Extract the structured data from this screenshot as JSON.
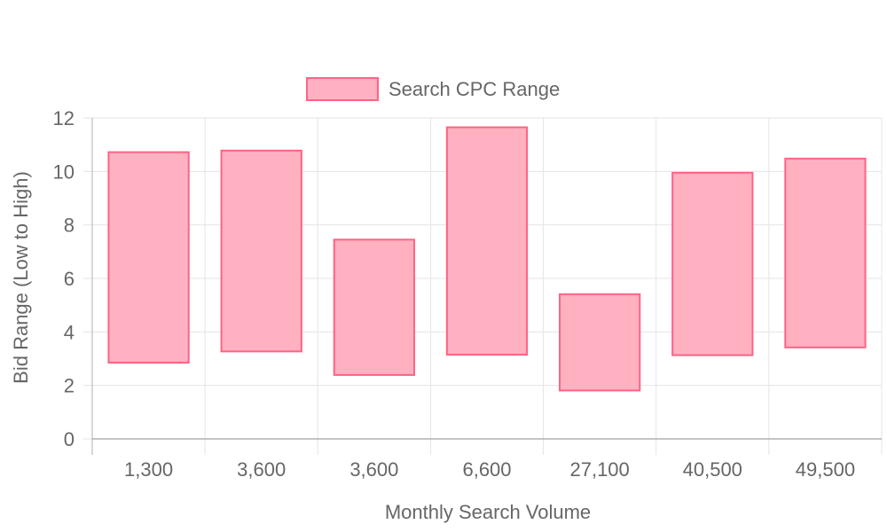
{
  "chart_data": {
    "type": "bar",
    "subtype": "floating-range",
    "categories": [
      "1,300",
      "3,600",
      "3,600",
      "6,600",
      "27,100",
      "40,500",
      "49,500"
    ],
    "series": [
      {
        "name": "Search CPC Range",
        "ranges": [
          [
            2.85,
            10.72
          ],
          [
            3.27,
            10.78
          ],
          [
            2.39,
            7.45
          ],
          [
            3.15,
            11.65
          ],
          [
            1.81,
            5.41
          ],
          [
            3.13,
            9.95
          ],
          [
            3.42,
            10.48
          ]
        ],
        "fill": "#ffb1c1",
        "stroke": "#ff6384"
      }
    ],
    "xlabel": "Monthly Search Volume",
    "ylabel": "Bid Range (Low to High)",
    "ylim": [
      0,
      12
    ],
    "yticks": [
      0,
      2,
      4,
      6,
      8,
      10,
      12
    ],
    "grid": true,
    "legend": "top-center"
  },
  "colors": {
    "grid": "#e5e5e5",
    "axis": "#b0b0b0",
    "text": "#666666"
  }
}
